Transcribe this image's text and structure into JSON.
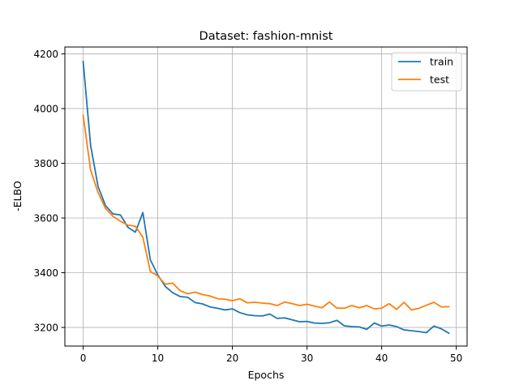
{
  "chart_data": {
    "type": "line",
    "title": "Dataset: fashion-mnist",
    "xlabel": "Epochs",
    "ylabel": "-ELBO",
    "xlim": [
      -2.45,
      51.45
    ],
    "ylim": [
      3132,
      4225
    ],
    "xticks": [
      0,
      10,
      20,
      30,
      40,
      50
    ],
    "yticks": [
      3200,
      3400,
      3600,
      3800,
      4000,
      4200
    ],
    "grid": true,
    "legend_position": "top-right",
    "series": [
      {
        "name": "train",
        "color": "#1f77b4",
        "x": [
          0,
          1,
          2,
          3,
          4,
          5,
          6,
          7,
          8,
          9,
          10,
          11,
          12,
          13,
          14,
          15,
          16,
          17,
          18,
          19,
          20,
          21,
          22,
          23,
          24,
          25,
          26,
          27,
          28,
          29,
          30,
          31,
          32,
          33,
          34,
          35,
          36,
          37,
          38,
          39,
          40,
          41,
          42,
          43,
          44,
          45,
          46,
          47,
          48,
          49
        ],
        "values": [
          4172,
          3865,
          3715,
          3645,
          3615,
          3611,
          3566,
          3548,
          3620,
          3447,
          3392,
          3350,
          3327,
          3313,
          3310,
          3291,
          3286,
          3275,
          3270,
          3264,
          3268,
          3254,
          3246,
          3243,
          3242,
          3249,
          3233,
          3235,
          3228,
          3221,
          3222,
          3216,
          3215,
          3217,
          3226,
          3206,
          3203,
          3202,
          3193,
          3216,
          3205,
          3209,
          3203,
          3191,
          3188,
          3185,
          3181,
          3205,
          3195,
          3179
        ]
      },
      {
        "name": "test",
        "color": "#ff7f0e",
        "x": [
          0,
          1,
          2,
          3,
          4,
          5,
          6,
          7,
          8,
          9,
          10,
          11,
          12,
          13,
          14,
          15,
          16,
          17,
          18,
          19,
          20,
          21,
          22,
          23,
          24,
          25,
          26,
          27,
          28,
          29,
          30,
          31,
          32,
          33,
          34,
          35,
          36,
          37,
          38,
          39,
          40,
          41,
          42,
          43,
          44,
          45,
          46,
          47,
          48,
          49
        ],
        "values": [
          3975,
          3775,
          3693,
          3635,
          3606,
          3588,
          3574,
          3570,
          3530,
          3405,
          3388,
          3358,
          3362,
          3334,
          3323,
          3329,
          3320,
          3315,
          3305,
          3303,
          3298,
          3305,
          3290,
          3292,
          3289,
          3287,
          3280,
          3293,
          3287,
          3280,
          3285,
          3278,
          3272,
          3293,
          3271,
          3270,
          3280,
          3272,
          3280,
          3268,
          3270,
          3287,
          3266,
          3292,
          3264,
          3270,
          3281,
          3292,
          3275,
          3276
        ]
      }
    ]
  }
}
